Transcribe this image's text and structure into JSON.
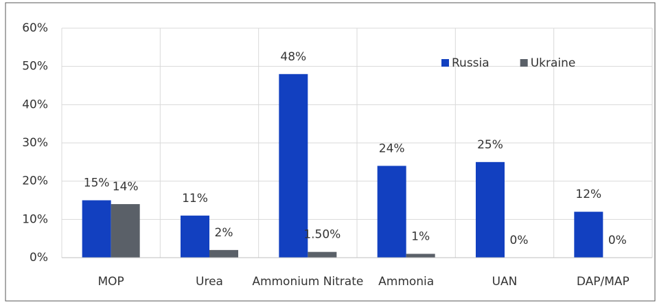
{
  "chart_data": {
    "type": "bar",
    "categories": [
      "MOP",
      "Urea",
      "Ammonium Nitrate",
      "Ammonia",
      "UAN",
      "DAP/MAP"
    ],
    "series": [
      {
        "name": "Russia",
        "color": "#1240c0",
        "values": [
          15,
          11,
          48,
          24,
          25,
          12
        ],
        "value_labels": [
          "15%",
          "11%",
          "48%",
          "24%",
          "25%",
          "12%"
        ]
      },
      {
        "name": "Ukraine",
        "color": "#5a6068",
        "values": [
          14,
          2,
          1.5,
          1,
          0,
          0
        ],
        "value_labels": [
          "14%",
          "2%",
          "1.50%",
          "1%",
          "0%",
          "0%"
        ]
      }
    ],
    "ylim": [
      0,
      60
    ],
    "yticks": [
      {
        "value": 0,
        "label": "0%"
      },
      {
        "value": 10,
        "label": "10%"
      },
      {
        "value": 20,
        "label": "20%"
      },
      {
        "value": 30,
        "label": "30%"
      },
      {
        "value": 40,
        "label": "40%"
      },
      {
        "value": 50,
        "label": "50%"
      },
      {
        "value": 60,
        "label": "60%"
      }
    ],
    "grid": true,
    "legend": "upper right"
  }
}
